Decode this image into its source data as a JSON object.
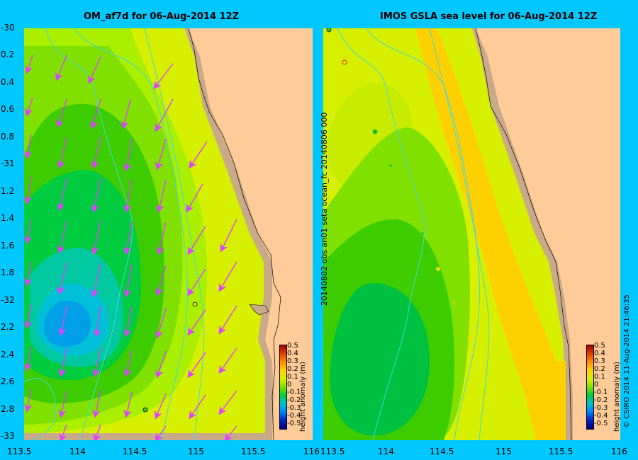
{
  "left_panel": {
    "title": "OM_af7d for 06-Aug-2014 12Z",
    "y_ticks": [
      "-30",
      "0.2",
      "0.4",
      "0.6",
      "0.8",
      "-31",
      "1.2",
      "1.4",
      "1.6",
      "1.8",
      "-32",
      "2.2",
      "2.4",
      "2.6",
      "2.8",
      "-33"
    ],
    "x_ticks": [
      "113.5",
      "114",
      "114.5",
      "115",
      "115.5",
      "116"
    ]
  },
  "right_panel": {
    "title": "IMOS GSLA sea level  for 06-Aug-2014 12Z",
    "side_text": "20140802 obs  an01  seta     ocean_fc  20140806  000",
    "x_ticks": [
      "113.5",
      "114",
      "114.5",
      "115",
      "115.5",
      "116"
    ]
  },
  "colorbar": {
    "label": "height anomaly (m)",
    "ticks": [
      "0.5",
      "0.4",
      "0.3",
      "0.2",
      "0.1",
      "0",
      "-0.1",
      "-0.2",
      "-0.3",
      "-0.4",
      "-0.5"
    ]
  },
  "footer": {
    "credit": "© CSIRO 2014   11-Aug-2014 21:46:35"
  },
  "colors": {
    "background": "#00c8ff",
    "land": "#ffcc99",
    "shelf": "#c8aa88",
    "arrows": "#e040ff",
    "bathymetry_contours": "#40d8e0"
  }
}
